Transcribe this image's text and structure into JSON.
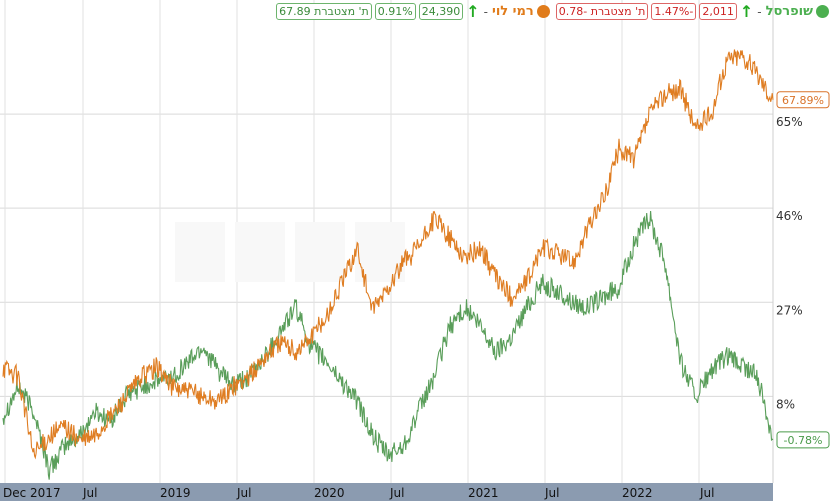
{
  "legend": [
    {
      "name": "שופרסל",
      "dash": "-",
      "color": "#4caf50",
      "arrow": "↑",
      "arrow_color": "#22aa22",
      "value": "2,011",
      "change": "-1.47%",
      "cumulative": "ת' מצטברת -0.78",
      "box_tone": "red"
    },
    {
      "name": "רמי לוי",
      "dash": "-",
      "color": "#e07b1a",
      "arrow": "↑",
      "arrow_color": "#22aa22",
      "value": "24,390",
      "change": "0.91%",
      "cumulative": "ת' מצטברת 67.89",
      "box_tone": "green"
    }
  ],
  "chart_data": {
    "type": "line",
    "x_ticks": [
      "Dec 2017",
      "Jul",
      "2019",
      "Jul",
      "2020",
      "Jul",
      "2021",
      "Jul",
      "2022",
      "Jul"
    ],
    "y_ticks": [
      "65%",
      "46%",
      "27%",
      "8%"
    ],
    "y_tick_values": [
      65,
      46,
      27,
      8
    ],
    "ylim": [
      -9.5,
      84
    ],
    "grid": true,
    "end_labels": {
      "rami_levy": "67.89%",
      "shufersal": "-0.78%"
    },
    "colors": {
      "shufersal": "#5a9e5a",
      "rami_levy": "#df7d22"
    },
    "series": [
      {
        "name": "שופרסל",
        "key": "shufersal",
        "x": [
          0,
          0.02,
          0.04,
          0.06,
          0.08,
          0.1,
          0.12,
          0.14,
          0.16,
          0.18,
          0.2,
          0.22,
          0.24,
          0.26,
          0.28,
          0.3,
          0.32,
          0.34,
          0.36,
          0.38,
          0.4,
          0.42,
          0.44,
          0.46,
          0.48,
          0.5,
          0.52,
          0.54,
          0.56,
          0.58,
          0.6,
          0.62,
          0.64,
          0.66,
          0.68,
          0.7,
          0.72,
          0.74,
          0.76,
          0.78,
          0.8,
          0.82,
          0.84,
          0.86,
          0.88,
          0.9,
          0.92,
          0.94,
          0.96,
          0.98,
          1
        ],
        "y": [
          4,
          10,
          5,
          -7,
          -2,
          0,
          5,
          3,
          8,
          10,
          11,
          12,
          15,
          18,
          13,
          10,
          12,
          16,
          21,
          26,
          18,
          15,
          11,
          7,
          0,
          -4,
          -2,
          5,
          12,
          22,
          26,
          22,
          17,
          20,
          26,
          31,
          29,
          27,
          26,
          28,
          30,
          39,
          44,
          35,
          15,
          8,
          13,
          16,
          14,
          12,
          -0.78
        ]
      },
      {
        "name": "רמי לוי",
        "key": "rami_levy",
        "x": [
          0,
          0.02,
          0.04,
          0.06,
          0.08,
          0.1,
          0.12,
          0.14,
          0.16,
          0.18,
          0.2,
          0.22,
          0.24,
          0.26,
          0.28,
          0.3,
          0.32,
          0.34,
          0.36,
          0.38,
          0.4,
          0.42,
          0.44,
          0.46,
          0.48,
          0.5,
          0.52,
          0.54,
          0.56,
          0.58,
          0.6,
          0.62,
          0.64,
          0.66,
          0.68,
          0.7,
          0.72,
          0.74,
          0.76,
          0.78,
          0.8,
          0.82,
          0.84,
          0.86,
          0.88,
          0.9,
          0.92,
          0.94,
          0.96,
          0.98,
          1
        ],
        "y": [
          14,
          12,
          -4,
          0,
          2,
          -1,
          0,
          4,
          8,
          12,
          14,
          10,
          9,
          8,
          7,
          10,
          12,
          16,
          19,
          17,
          20,
          24,
          31,
          38,
          25,
          30,
          35,
          38,
          44,
          40,
          36,
          38,
          32,
          28,
          31,
          38,
          37,
          35,
          42,
          48,
          58,
          56,
          65,
          69,
          70,
          62,
          65,
          76,
          77,
          73,
          67.89
        ]
      }
    ]
  }
}
